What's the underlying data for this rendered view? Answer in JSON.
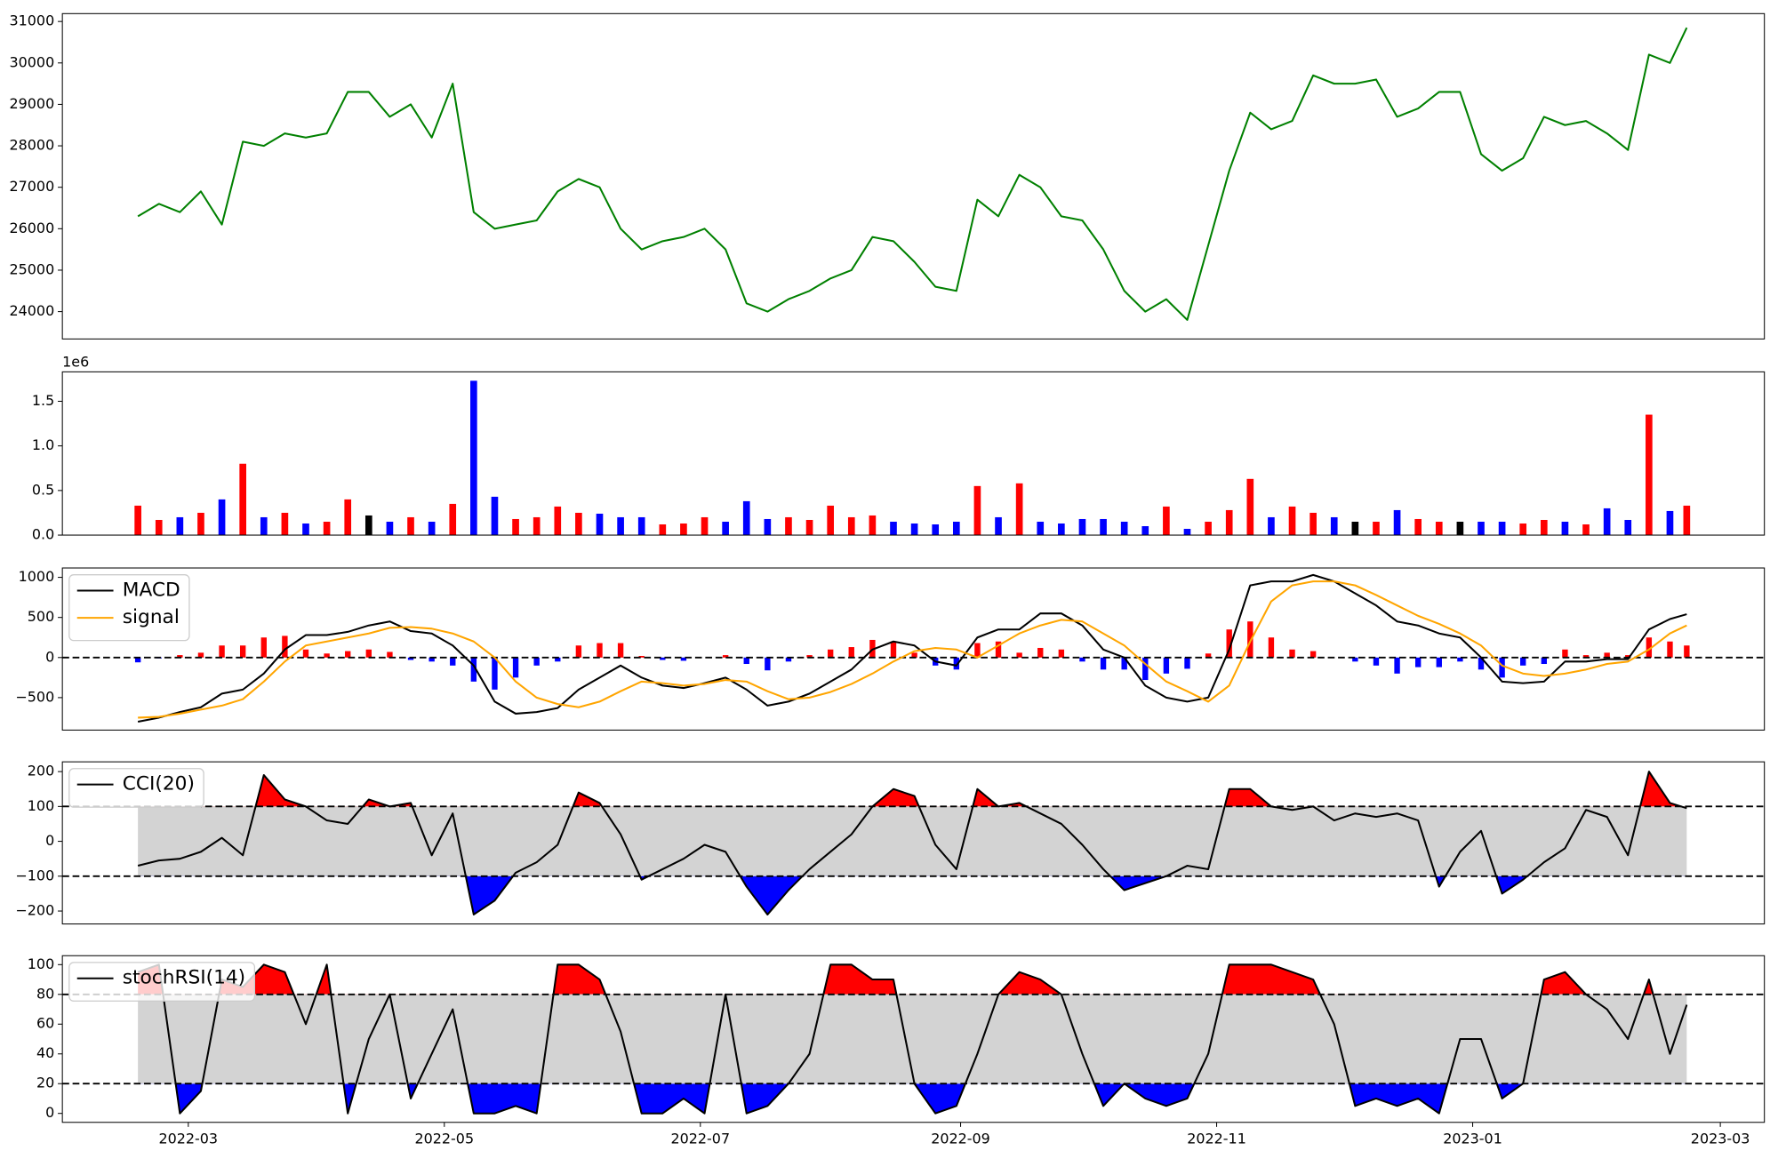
{
  "chart_data": [
    {
      "type": "line",
      "x": [
        47,
        52,
        57,
        62,
        67,
        72,
        77,
        82,
        87,
        92,
        97,
        102,
        107,
        112,
        117,
        122,
        127,
        132,
        137,
        142,
        147,
        152,
        157,
        162,
        167,
        172,
        177,
        182,
        187,
        192,
        197,
        202,
        207,
        212,
        217,
        222,
        227,
        232,
        237,
        242,
        247,
        252,
        257,
        262,
        267,
        272,
        277,
        282,
        287,
        292,
        297,
        302,
        307,
        312,
        317,
        322,
        327,
        332,
        337,
        342,
        347,
        352,
        357,
        362,
        367,
        372,
        377,
        382,
        387,
        392,
        397,
        402,
        407,
        412,
        416
      ],
      "xlim": [
        29,
        434.5
      ],
      "series": [
        {
          "color": "#008000",
          "values": [
            26300,
            26600,
            26400,
            26900,
            26100,
            28100,
            28000,
            28300,
            28200,
            28300,
            29300,
            29300,
            28700,
            29000,
            28200,
            29500,
            26400,
            26000,
            26100,
            26200,
            26900,
            27200,
            27000,
            26000,
            25500,
            25700,
            25800,
            26000,
            25500,
            24200,
            24000,
            24300,
            24500,
            24800,
            25000,
            25800,
            25700,
            25200,
            24600,
            24500,
            26700,
            26300,
            27300,
            27000,
            26300,
            26200,
            25500,
            24500,
            24000,
            24300,
            23800,
            25600,
            27400,
            28800,
            28400,
            28600,
            29700,
            29500,
            29500,
            29600,
            28700,
            28900,
            29300,
            29300,
            27800,
            27400,
            27700,
            28700,
            28500,
            28600,
            28300,
            27900,
            30200,
            30000,
            30850
          ]
        }
      ],
      "ylim": [
        23340,
        31190
      ],
      "yticks": [
        24000,
        25000,
        26000,
        27000,
        28000,
        29000,
        30000,
        31000
      ]
    },
    {
      "type": "bar",
      "x": [
        47,
        52,
        57,
        62,
        67,
        72,
        77,
        82,
        87,
        92,
        97,
        102,
        107,
        112,
        117,
        122,
        127,
        132,
        137,
        142,
        147,
        152,
        157,
        162,
        167,
        172,
        177,
        182,
        187,
        192,
        197,
        202,
        207,
        212,
        217,
        222,
        227,
        232,
        237,
        242,
        247,
        252,
        257,
        262,
        267,
        272,
        277,
        282,
        287,
        292,
        297,
        302,
        307,
        312,
        317,
        322,
        327,
        332,
        337,
        342,
        347,
        352,
        357,
        362,
        367,
        372,
        377,
        382,
        387,
        392,
        397,
        402,
        407,
        412,
        416
      ],
      "xlim": [
        29,
        434.5
      ],
      "values": [
        0.33,
        0.17,
        0.2,
        0.25,
        0.4,
        0.8,
        0.2,
        0.25,
        0.13,
        0.15,
        0.4,
        0.22,
        0.15,
        0.2,
        0.15,
        0.35,
        1.73,
        0.43,
        0.18,
        0.2,
        0.32,
        0.25,
        0.24,
        0.2,
        0.2,
        0.12,
        0.13,
        0.2,
        0.15,
        0.38,
        0.18,
        0.2,
        0.17,
        0.33,
        0.2,
        0.22,
        0.15,
        0.13,
        0.12,
        0.15,
        0.55,
        0.2,
        0.58,
        0.15,
        0.13,
        0.18,
        0.18,
        0.15,
        0.1,
        0.32,
        0.07,
        0.15,
        0.28,
        0.63,
        0.2,
        0.32,
        0.25,
        0.2,
        0.15,
        0.15,
        0.28,
        0.18,
        0.15,
        0.15,
        0.15,
        0.15,
        0.13,
        0.17,
        0.15,
        0.12,
        0.3,
        0.17,
        1.35,
        0.27,
        0.33
      ],
      "colors": [
        "#ff0000",
        "#ff0000",
        "#0000ff",
        "#ff0000",
        "#0000ff",
        "#ff0000",
        "#0000ff",
        "#ff0000",
        "#0000ff",
        "#ff0000",
        "#ff0000",
        "#000000",
        "#0000ff",
        "#ff0000",
        "#0000ff",
        "#ff0000",
        "#0000ff",
        "#0000ff",
        "#ff0000",
        "#ff0000",
        "#ff0000",
        "#ff0000",
        "#0000ff",
        "#0000ff",
        "#0000ff",
        "#ff0000",
        "#ff0000",
        "#ff0000",
        "#0000ff",
        "#0000ff",
        "#0000ff",
        "#ff0000",
        "#ff0000",
        "#ff0000",
        "#ff0000",
        "#ff0000",
        "#0000ff",
        "#0000ff",
        "#0000ff",
        "#0000ff",
        "#ff0000",
        "#0000ff",
        "#ff0000",
        "#0000ff",
        "#0000ff",
        "#0000ff",
        "#0000ff",
        "#0000ff",
        "#0000ff",
        "#ff0000",
        "#0000ff",
        "#ff0000",
        "#ff0000",
        "#ff0000",
        "#0000ff",
        "#ff0000",
        "#ff0000",
        "#0000ff",
        "#000000",
        "#ff0000",
        "#0000ff",
        "#ff0000",
        "#ff0000",
        "#000000",
        "#0000ff",
        "#0000ff",
        "#ff0000",
        "#ff0000",
        "#0000ff",
        "#ff0000",
        "#0000ff",
        "#0000ff",
        "#ff0000",
        "#0000ff",
        "#ff0000"
      ],
      "ylim": [
        0,
        1.83
      ],
      "yticks": [
        {
          "value": 0,
          "label": "0.0"
        },
        0.5,
        {
          "value": 1,
          "label": "1.0"
        },
        1.5
      ],
      "offset_label": "1e6"
    },
    {
      "type": "line",
      "x": [
        47,
        52,
        57,
        62,
        67,
        72,
        77,
        82,
        87,
        92,
        97,
        102,
        107,
        112,
        117,
        122,
        127,
        132,
        137,
        142,
        147,
        152,
        157,
        162,
        167,
        172,
        177,
        182,
        187,
        192,
        197,
        202,
        207,
        212,
        217,
        222,
        227,
        232,
        237,
        242,
        247,
        252,
        257,
        262,
        267,
        272,
        277,
        282,
        287,
        292,
        297,
        302,
        307,
        312,
        317,
        322,
        327,
        332,
        337,
        342,
        347,
        352,
        357,
        362,
        367,
        372,
        377,
        382,
        387,
        392,
        397,
        402,
        407,
        412,
        416
      ],
      "xlim": [
        29,
        434.5
      ],
      "series": [
        {
          "name": "MACD",
          "color": "#000000",
          "values": [
            -800,
            -750,
            -680,
            -620,
            -450,
            -400,
            -200,
            100,
            280,
            280,
            320,
            400,
            450,
            330,
            300,
            150,
            -100,
            -550,
            -700,
            -680,
            -630,
            -400,
            -250,
            -100,
            -250,
            -350,
            -380,
            -320,
            -250,
            -400,
            -600,
            -550,
            -450,
            -300,
            -150,
            100,
            200,
            150,
            -50,
            -100,
            250,
            350,
            350,
            550,
            550,
            400,
            100,
            0,
            -350,
            -500,
            -550,
            -500,
            100,
            900,
            950,
            950,
            1030,
            950,
            800,
            650,
            450,
            400,
            300,
            250,
            0,
            -300,
            -320,
            -300,
            -50,
            -50,
            -20,
            -20,
            350,
            480,
            540
          ]
        },
        {
          "name": "signal",
          "color": "#ffa500",
          "values": [
            -750,
            -740,
            -700,
            -650,
            -600,
            -520,
            -300,
            -50,
            150,
            200,
            250,
            300,
            370,
            380,
            360,
            300,
            200,
            0,
            -300,
            -500,
            -580,
            -620,
            -550,
            -420,
            -300,
            -320,
            -350,
            -330,
            -280,
            -300,
            -420,
            -520,
            -500,
            -430,
            -330,
            -200,
            -50,
            80,
            120,
            100,
            0,
            150,
            300,
            400,
            470,
            450,
            300,
            150,
            -80,
            -300,
            -420,
            -550,
            -350,
            200,
            700,
            900,
            950,
            950,
            900,
            780,
            650,
            520,
            420,
            300,
            150,
            -100,
            -200,
            -230,
            -200,
            -150,
            -80,
            -50,
            100,
            300,
            400
          ]
        }
      ],
      "histogram": [
        -60,
        -10,
        30,
        60,
        150,
        150,
        250,
        270,
        100,
        50,
        80,
        100,
        70,
        -30,
        -50,
        -100,
        -300,
        -400,
        -250,
        -100,
        -50,
        150,
        180,
        180,
        20,
        -30,
        -40,
        0,
        30,
        -80,
        -160,
        -50,
        30,
        100,
        130,
        220,
        200,
        60,
        -100,
        -150,
        180,
        200,
        60,
        120,
        100,
        -50,
        -150,
        -150,
        -280,
        -200,
        -140,
        50,
        350,
        450,
        250,
        100,
        80,
        0,
        -50,
        -100,
        -200,
        -120,
        -120,
        -50,
        -150,
        -250,
        -100,
        -80,
        100,
        30,
        60,
        30,
        250,
        200,
        150
      ],
      "histogram_up_color": "#ff0000",
      "histogram_down_color": "#0000ff",
      "levels": [
        0
      ],
      "ylim": [
        -905,
        1117
      ],
      "yticks": [
        {
          "value": -500,
          "label": "−500"
        },
        0,
        500,
        1000
      ]
    },
    {
      "type": "line",
      "x": [
        47,
        52,
        57,
        62,
        67,
        72,
        77,
        82,
        87,
        92,
        97,
        102,
        107,
        112,
        117,
        122,
        127,
        132,
        137,
        142,
        147,
        152,
        157,
        162,
        167,
        172,
        177,
        182,
        187,
        192,
        197,
        202,
        207,
        212,
        217,
        222,
        227,
        232,
        237,
        242,
        247,
        252,
        257,
        262,
        267,
        272,
        277,
        282,
        287,
        292,
        297,
        302,
        307,
        312,
        317,
        322,
        327,
        332,
        337,
        342,
        347,
        352,
        357,
        362,
        367,
        372,
        377,
        382,
        387,
        392,
        397,
        402,
        407,
        412,
        416
      ],
      "xlim": [
        29,
        434.5
      ],
      "series": [
        {
          "name": "CCI(20)",
          "color": "#000000",
          "values": [
            -70,
            -55,
            -50,
            -30,
            10,
            -40,
            190,
            120,
            100,
            60,
            50,
            120,
            100,
            110,
            -40,
            80,
            -210,
            -170,
            -90,
            -60,
            -10,
            140,
            110,
            20,
            -110,
            -80,
            -50,
            -10,
            -30,
            -130,
            -210,
            -140,
            -80,
            -30,
            20,
            100,
            150,
            130,
            -10,
            -80,
            150,
            100,
            110,
            80,
            50,
            -10,
            -80,
            -140,
            -120,
            -100,
            -70,
            -80,
            150,
            150,
            100,
            90,
            100,
            60,
            80,
            70,
            80,
            60,
            -130,
            -30,
            30,
            -150,
            -110,
            -60,
            -20,
            90,
            70,
            -40,
            200,
            110,
            95
          ]
        }
      ],
      "levels": [
        100,
        -100
      ],
      "band_color": "#d3d3d3",
      "above_color": "#ff0000",
      "below_color": "#0000ff",
      "ylim": [
        -237,
        228
      ],
      "yticks": [
        {
          "value": -200,
          "label": "−200"
        },
        {
          "value": -100,
          "label": "−100"
        },
        0,
        100,
        200
      ]
    },
    {
      "type": "line",
      "x": [
        47,
        52,
        57,
        62,
        67,
        72,
        77,
        82,
        87,
        92,
        97,
        102,
        107,
        112,
        117,
        122,
        127,
        132,
        137,
        142,
        147,
        152,
        157,
        162,
        167,
        172,
        177,
        182,
        187,
        192,
        197,
        202,
        207,
        212,
        217,
        222,
        227,
        232,
        237,
        242,
        247,
        252,
        257,
        262,
        267,
        272,
        277,
        282,
        287,
        292,
        297,
        302,
        307,
        312,
        317,
        322,
        327,
        332,
        337,
        342,
        347,
        352,
        357,
        362,
        367,
        372,
        377,
        382,
        387,
        392,
        397,
        402,
        407,
        412,
        416
      ],
      "xlim": [
        29,
        434.5
      ],
      "series": [
        {
          "name": "stochRSI(14)",
          "color": "#000000",
          "values": [
            95,
            100,
            0,
            15,
            90,
            85,
            100,
            95,
            60,
            100,
            0,
            50,
            80,
            10,
            40,
            70,
            0,
            0,
            5,
            0,
            100,
            100,
            90,
            55,
            0,
            0,
            10,
            0,
            80,
            0,
            5,
            20,
            40,
            100,
            100,
            90,
            90,
            20,
            0,
            5,
            40,
            80,
            95,
            90,
            80,
            40,
            5,
            20,
            10,
            5,
            10,
            40,
            100,
            100,
            100,
            95,
            90,
            60,
            5,
            10,
            5,
            10,
            0,
            50,
            50,
            10,
            20,
            90,
            95,
            80,
            70,
            50,
            90,
            40,
            73
          ]
        }
      ],
      "levels": [
        80,
        20
      ],
      "band_color": "#d3d3d3",
      "above_color": "#ff0000",
      "below_color": "#0000ff",
      "ylim": [
        -6,
        106
      ],
      "yticks": [
        0,
        20,
        40,
        60,
        80,
        100
      ],
      "xticks": [
        {
          "value": 59,
          "label": "2022-03"
        },
        {
          "value": 120,
          "label": "2022-05"
        },
        {
          "value": 181,
          "label": "2022-07"
        },
        {
          "value": 243,
          "label": "2022-09"
        },
        {
          "value": 304,
          "label": "2022-11"
        },
        {
          "value": 365,
          "label": "2023-01"
        },
        {
          "value": 424,
          "label": "2023-03"
        }
      ]
    }
  ]
}
